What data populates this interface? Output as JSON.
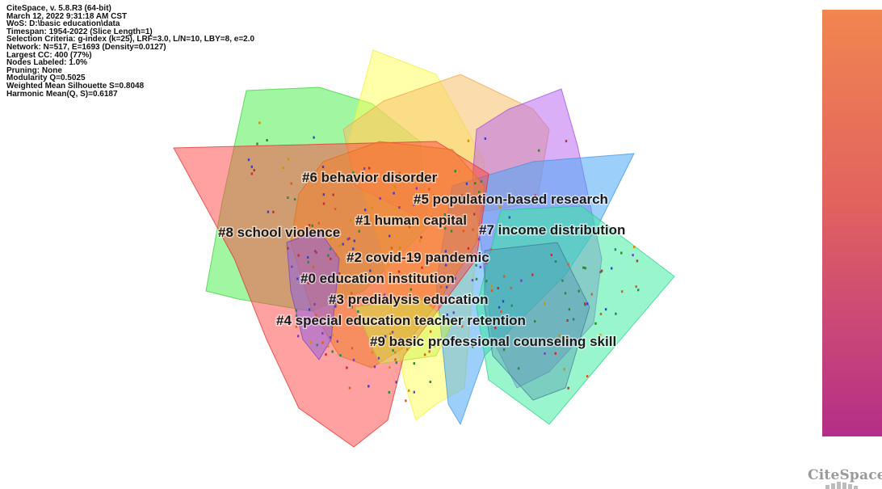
{
  "info_lines": [
    "CiteSpace, v. 5.8.R3 (64-bit)",
    "March 12, 2022 9:31:18 AM CST",
    "WoS: D:\\basic education\\data",
    "Timespan: 1954-2022 (Slice Length=1)",
    "Selection Criteria: g-index (k=25), LRF=3.0, L/N=10, LBY=8, e=2.0",
    "Network: N=517, E=1693 (Density=0.0127)",
    "Largest CC: 400 (77%)",
    "Nodes Labeled: 1.0%",
    "Pruning: None",
    "Modularity Q=0.5025",
    "Weighted Mean Silhouette S=0.8048",
    "Harmonic Mean(Q, S)=0.6187"
  ],
  "clusters": [
    {
      "id": 0,
      "label": "#0 education institution",
      "color": "#f08a3c"
    },
    {
      "id": 1,
      "label": "#1 human capital",
      "color": "#f4a14a"
    },
    {
      "id": 2,
      "label": "#2 covid-19 pandemic",
      "color": "#f8f050"
    },
    {
      "id": 3,
      "label": "#3 predialysis education",
      "color": "#ffff66"
    },
    {
      "id": 4,
      "label": "#4 special education teacher retention",
      "color": "#66ee66"
    },
    {
      "id": 5,
      "label": "#5 population-based research",
      "color": "#44ee99"
    },
    {
      "id": 6,
      "label": "#6 behavior disorder",
      "color": "#ef5555"
    },
    {
      "id": 7,
      "label": "#7 income distribution",
      "color": "#5aabf5"
    },
    {
      "id": 8,
      "label": "#8 school violence",
      "color": "#b56ae8"
    },
    {
      "id": 9,
      "label": "#9 basic professional counseling skill",
      "color": "#44aa88"
    }
  ],
  "logo": {
    "text": "CiteSpace"
  },
  "colorbar": {
    "top_color": "#f08650",
    "bottom_color": "#b42d88"
  }
}
